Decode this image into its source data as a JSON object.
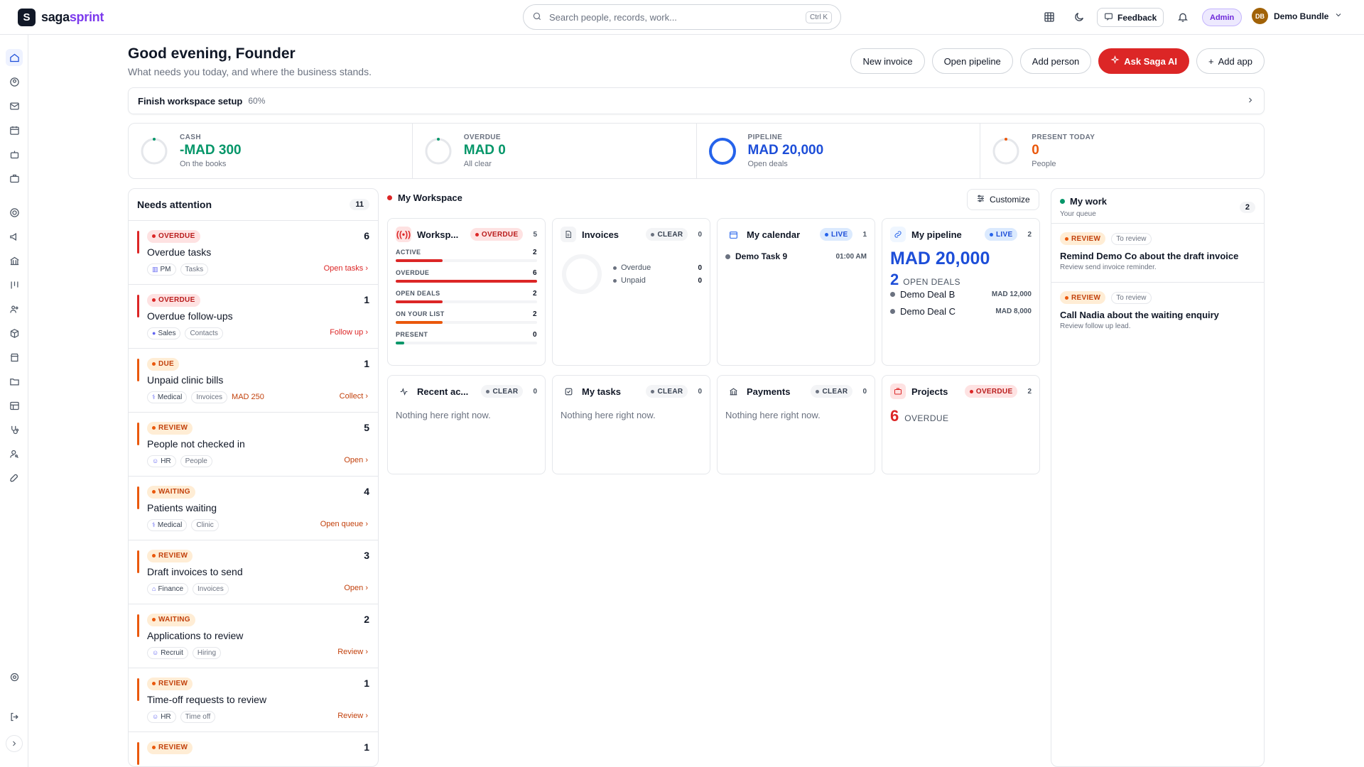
{
  "header": {
    "brand_a": "saga",
    "brand_b": "sprint",
    "logo_letter": "S",
    "search_placeholder": "Search people, records, work...",
    "search_shortcut": "Ctrl K",
    "feedback_label": "Feedback",
    "admin_label": "Admin",
    "user_initials": "DB",
    "user_name": "Demo Bundle"
  },
  "sidebar": {
    "items": [
      "home-icon",
      "user-circle-icon",
      "mail-icon",
      "calendar-icon",
      "bot-icon",
      "briefcase-icon",
      "target-icon",
      "megaphone-icon",
      "bank-icon",
      "kanban-icon",
      "people-icon",
      "package-icon",
      "store-icon",
      "folder-icon",
      "table-icon",
      "stethoscope-icon",
      "user-search-icon",
      "rocket-icon",
      "settings-icon",
      "logout-icon",
      "expand-icon"
    ]
  },
  "page": {
    "greeting": "Good evening, Founder",
    "subtitle": "What needs you today, and where the business stands.",
    "actions": {
      "new_invoice": "New invoice",
      "open_pipeline": "Open pipeline",
      "add_person": "Add person",
      "ask_saga": "Ask Saga AI",
      "add_app": "Add app"
    },
    "setup": {
      "label": "Finish workspace setup",
      "percent": "60%"
    }
  },
  "stats": [
    {
      "label": "CASH",
      "value": "-MAD 300",
      "caption": "On the books",
      "color": "#059669",
      "ring": "#059669"
    },
    {
      "label": "OVERDUE",
      "value": "MAD 0",
      "caption": "All clear",
      "color": "#059669",
      "ring": "#059669"
    },
    {
      "label": "PIPELINE",
      "value": "MAD 20,000",
      "caption": "Open deals",
      "color": "#1d4ed8",
      "ring": "#2563eb"
    },
    {
      "label": "PRESENT TODAY",
      "value": "0",
      "caption": "People",
      "color": "#ea580c",
      "ring": "#ea580c"
    }
  ],
  "attention": {
    "title": "Needs attention",
    "count": "11",
    "items": [
      {
        "badge": "OVERDUE",
        "kind": "red",
        "num": "6",
        "title": "Overdue tasks",
        "tag1": "PM",
        "tag2": "Tasks",
        "amount": "",
        "link": "Open tasks"
      },
      {
        "badge": "OVERDUE",
        "kind": "red",
        "num": "1",
        "title": "Overdue follow-ups",
        "tag1": "Sales",
        "tag2": "Contacts",
        "amount": "",
        "link": "Follow up"
      },
      {
        "badge": "DUE",
        "kind": "orange",
        "num": "1",
        "title": "Unpaid clinic bills",
        "tag1": "Medical",
        "tag2": "Invoices",
        "amount": "MAD 250",
        "link": "Collect"
      },
      {
        "badge": "REVIEW",
        "kind": "orange",
        "num": "5",
        "title": "People not checked in",
        "tag1": "HR",
        "tag2": "People",
        "amount": "",
        "link": "Open"
      },
      {
        "badge": "WAITING",
        "kind": "orange",
        "num": "4",
        "title": "Patients waiting",
        "tag1": "Medical",
        "tag2": "Clinic",
        "amount": "",
        "link": "Open queue"
      },
      {
        "badge": "REVIEW",
        "kind": "orange",
        "num": "3",
        "title": "Draft invoices to send",
        "tag1": "Finance",
        "tag2": "Invoices",
        "amount": "",
        "link": "Open"
      },
      {
        "badge": "WAITING",
        "kind": "orange",
        "num": "2",
        "title": "Applications to review",
        "tag1": "Recruit",
        "tag2": "Hiring",
        "amount": "",
        "link": "Review"
      },
      {
        "badge": "REVIEW",
        "kind": "orange",
        "num": "1",
        "title": "Time-off requests to review",
        "tag1": "HR",
        "tag2": "Time off",
        "amount": "",
        "link": "Review"
      },
      {
        "badge": "REVIEW",
        "kind": "orange",
        "num": "1",
        "title": "",
        "tag1": "",
        "tag2": "",
        "amount": "",
        "link": ""
      }
    ]
  },
  "workspace": {
    "title": "My Workspace",
    "customize": "Customize",
    "ws_card": {
      "title": "Worksp...",
      "badge": "OVERDUE",
      "count": "5",
      "metrics": [
        {
          "label": "ACTIVE",
          "value": "2",
          "fill": 0.33,
          "color": "#dc2626"
        },
        {
          "label": "OVERDUE",
          "value": "6",
          "fill": 1.0,
          "color": "#dc2626"
        },
        {
          "label": "OPEN DEALS",
          "value": "2",
          "fill": 0.33,
          "color": "#dc2626"
        },
        {
          "label": "ON YOUR LIST",
          "value": "2",
          "fill": 0.33,
          "color": "#ea580c"
        },
        {
          "label": "PRESENT",
          "value": "0",
          "fill": 0.06,
          "color": "#059669"
        }
      ]
    },
    "invoices": {
      "title": "Invoices",
      "badge": "CLEAR",
      "count": "0",
      "overdue_label": "Overdue",
      "overdue_val": "0",
      "unpaid_label": "Unpaid",
      "unpaid_val": "0"
    },
    "calendar": {
      "title": "My calendar",
      "badge": "LIVE",
      "count": "1",
      "event": "Demo Task 9",
      "time": "01:00 AM"
    },
    "pipeline": {
      "title": "My pipeline",
      "badge": "LIVE",
      "count": "2",
      "amount": "MAD 20,000",
      "deals_num": "2",
      "deals_label": "OPEN DEALS",
      "deal1": "Demo Deal B",
      "deal1_val": "MAD 12,000",
      "deal2": "Demo Deal C",
      "deal2_val": "MAD 8,000"
    },
    "recent": {
      "title": "Recent ac...",
      "badge": "CLEAR",
      "count": "0",
      "empty": "Nothing here right now."
    },
    "tasks": {
      "title": "My tasks",
      "badge": "CLEAR",
      "count": "0",
      "empty": "Nothing here right now."
    },
    "payments": {
      "title": "Payments",
      "badge": "CLEAR",
      "count": "0",
      "empty": "Nothing here right now."
    },
    "projects": {
      "title": "Projects",
      "badge": "OVERDUE",
      "count": "2",
      "num": "6",
      "label": "OVERDUE"
    }
  },
  "mywork": {
    "title": "My work",
    "subtitle": "Your queue",
    "count": "2",
    "items": [
      {
        "badge": "REVIEW",
        "meta": "To review",
        "title": "Remind Demo Co about the draft invoice",
        "desc": "Review send invoice reminder."
      },
      {
        "badge": "REVIEW",
        "meta": "To review",
        "title": "Call Nadia about the waiting enquiry",
        "desc": "Review follow up lead."
      }
    ]
  }
}
